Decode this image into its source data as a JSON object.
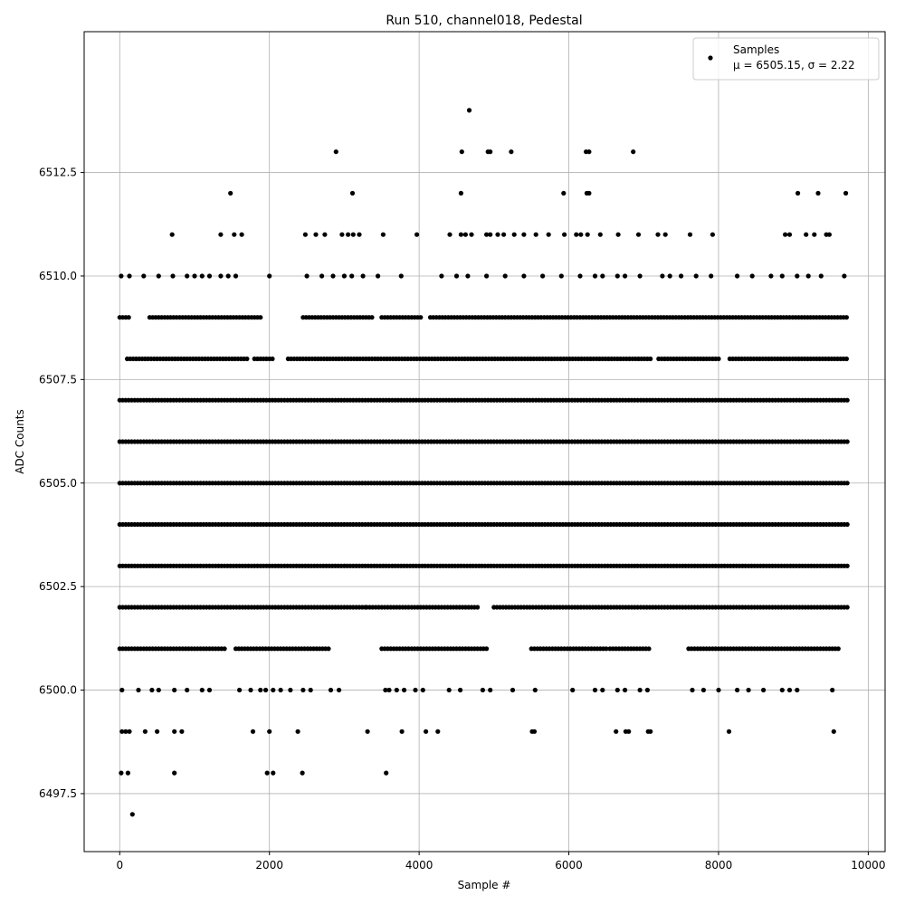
{
  "chart_data": {
    "type": "scatter",
    "title": "Run 510, channel018, Pedestal",
    "xlabel": "Sample #",
    "ylabel": "ADC Counts",
    "xlim": [
      -475,
      10225
    ],
    "ylim": [
      6496.1,
      6515.9
    ],
    "grid": true,
    "legend_position": "top-right",
    "marker_color": "#000000",
    "x_ticks": [
      0,
      2000,
      4000,
      6000,
      8000,
      10000
    ],
    "x_tick_labels": [
      "0",
      "2000",
      "4000",
      "6000",
      "8000",
      "10000"
    ],
    "y_ticks": [
      6497.5,
      6500.0,
      6502.5,
      6505.0,
      6507.5,
      6510.0,
      6512.5
    ],
    "y_tick_labels": [
      "6497.5",
      "6500.0",
      "6502.5",
      "6505.0",
      "6507.5",
      "6510.0",
      "6512.5"
    ],
    "series": [
      {
        "name": "Samples",
        "stats_label": "μ = 6505.15, σ = 2.22",
        "level_ranges": [
          {
            "y": 6509,
            "x_ranges": [
              [
                0,
                120
              ],
              [
                400,
                1900
              ],
              [
                2450,
                3400
              ],
              [
                3500,
                4050
              ],
              [
                4150,
                9720
              ]
            ]
          },
          {
            "y": 6508,
            "x_ranges": [
              [
                100,
                1700
              ],
              [
                1800,
                2050
              ],
              [
                2250,
                7100
              ],
              [
                7200,
                8000
              ],
              [
                8150,
                9720
              ]
            ]
          },
          {
            "y": 6507,
            "x_ranges": [
              [
                0,
                9720
              ]
            ]
          },
          {
            "y": 6506,
            "x_ranges": [
              [
                0,
                9720
              ]
            ]
          },
          {
            "y": 6505,
            "x_ranges": [
              [
                0,
                9720
              ]
            ]
          },
          {
            "y": 6504,
            "x_ranges": [
              [
                0,
                9720
              ]
            ]
          },
          {
            "y": 6503,
            "x_ranges": [
              [
                0,
                9720
              ]
            ]
          },
          {
            "y": 6502,
            "x_ranges": [
              [
                0,
                3300
              ],
              [
                3300,
                4800
              ],
              [
                5000,
                9720
              ]
            ]
          },
          {
            "y": 6501,
            "x_ranges": [
              [
                0,
                1400
              ],
              [
                1550,
                2800
              ],
              [
                3500,
                4900
              ],
              [
                5500,
                6500
              ],
              [
                6550,
                7100
              ],
              [
                7600,
                9600
              ]
            ]
          }
        ],
        "points": [
          [
            30,
            6500
          ],
          [
            250,
            6500
          ],
          [
            430,
            6500
          ],
          [
            520,
            6500
          ],
          [
            730,
            6500
          ],
          [
            900,
            6500
          ],
          [
            1100,
            6500
          ],
          [
            1200,
            6500
          ],
          [
            1600,
            6500
          ],
          [
            1750,
            6500
          ],
          [
            1880,
            6500
          ],
          [
            1950,
            6500
          ],
          [
            2050,
            6500
          ],
          [
            2150,
            6500
          ],
          [
            2280,
            6500
          ],
          [
            2450,
            6500
          ],
          [
            2550,
            6500
          ],
          [
            2820,
            6500
          ],
          [
            2930,
            6500
          ],
          [
            3550,
            6500
          ],
          [
            3600,
            6500
          ],
          [
            3700,
            6500
          ],
          [
            3800,
            6500
          ],
          [
            3950,
            6500
          ],
          [
            4050,
            6500
          ],
          [
            4400,
            6500
          ],
          [
            4550,
            6500
          ],
          [
            4850,
            6500
          ],
          [
            4950,
            6500
          ],
          [
            5250,
            6500
          ],
          [
            5550,
            6500
          ],
          [
            6050,
            6500
          ],
          [
            6350,
            6500
          ],
          [
            6450,
            6500
          ],
          [
            6650,
            6500
          ],
          [
            6750,
            6500
          ],
          [
            6950,
            6500
          ],
          [
            7050,
            6500
          ],
          [
            7650,
            6500
          ],
          [
            7800,
            6500
          ],
          [
            8000,
            6500
          ],
          [
            8250,
            6500
          ],
          [
            8400,
            6500
          ],
          [
            8600,
            6500
          ],
          [
            8850,
            6500
          ],
          [
            8950,
            6500
          ],
          [
            9050,
            6500
          ],
          [
            9520,
            6500
          ],
          [
            30,
            6499
          ],
          [
            80,
            6499
          ],
          [
            130,
            6499
          ],
          [
            340,
            6499
          ],
          [
            500,
            6499
          ],
          [
            730,
            6499
          ],
          [
            830,
            6499
          ],
          [
            1780,
            6499
          ],
          [
            2000,
            6499
          ],
          [
            2380,
            6499
          ],
          [
            3310,
            6499
          ],
          [
            3770,
            6499
          ],
          [
            4090,
            6499
          ],
          [
            4250,
            6499
          ],
          [
            5510,
            6499
          ],
          [
            5540,
            6499
          ],
          [
            6630,
            6499
          ],
          [
            6760,
            6499
          ],
          [
            6800,
            6499
          ],
          [
            7060,
            6499
          ],
          [
            7090,
            6499
          ],
          [
            8140,
            6499
          ],
          [
            9540,
            6499
          ],
          [
            20,
            6498
          ],
          [
            110,
            6498
          ],
          [
            730,
            6498
          ],
          [
            1970,
            6498
          ],
          [
            2050,
            6498
          ],
          [
            2440,
            6498
          ],
          [
            3560,
            6498
          ],
          [
            170,
            6497
          ],
          [
            20,
            6510
          ],
          [
            130,
            6510
          ],
          [
            320,
            6510
          ],
          [
            520,
            6510
          ],
          [
            710,
            6510
          ],
          [
            900,
            6510
          ],
          [
            1000,
            6510
          ],
          [
            1100,
            6510
          ],
          [
            1200,
            6510
          ],
          [
            1350,
            6510
          ],
          [
            1450,
            6510
          ],
          [
            1550,
            6510
          ],
          [
            2000,
            6510
          ],
          [
            2500,
            6510
          ],
          [
            2700,
            6510
          ],
          [
            2850,
            6510
          ],
          [
            3000,
            6510
          ],
          [
            3100,
            6510
          ],
          [
            3250,
            6510
          ],
          [
            3450,
            6510
          ],
          [
            3760,
            6510
          ],
          [
            4300,
            6510
          ],
          [
            4500,
            6510
          ],
          [
            4650,
            6510
          ],
          [
            4900,
            6510
          ],
          [
            5150,
            6510
          ],
          [
            5400,
            6510
          ],
          [
            5650,
            6510
          ],
          [
            5900,
            6510
          ],
          [
            6150,
            6510
          ],
          [
            6350,
            6510
          ],
          [
            6450,
            6510
          ],
          [
            6650,
            6510
          ],
          [
            6750,
            6510
          ],
          [
            6950,
            6510
          ],
          [
            7250,
            6510
          ],
          [
            7350,
            6510
          ],
          [
            7500,
            6510
          ],
          [
            7700,
            6510
          ],
          [
            7900,
            6510
          ],
          [
            8250,
            6510
          ],
          [
            8450,
            6510
          ],
          [
            8700,
            6510
          ],
          [
            8850,
            6510
          ],
          [
            9050,
            6510
          ],
          [
            9200,
            6510
          ],
          [
            9370,
            6510
          ],
          [
            9680,
            6510
          ],
          [
            700,
            6511
          ],
          [
            1350,
            6511
          ],
          [
            1530,
            6511
          ],
          [
            1630,
            6511
          ],
          [
            2480,
            6511
          ],
          [
            2620,
            6511
          ],
          [
            2740,
            6511
          ],
          [
            2970,
            6511
          ],
          [
            3050,
            6511
          ],
          [
            3120,
            6511
          ],
          [
            3200,
            6511
          ],
          [
            3520,
            6511
          ],
          [
            3970,
            6511
          ],
          [
            4410,
            6511
          ],
          [
            4560,
            6511
          ],
          [
            4620,
            6511
          ],
          [
            4700,
            6511
          ],
          [
            4900,
            6511
          ],
          [
            4950,
            6511
          ],
          [
            5050,
            6511
          ],
          [
            5130,
            6511
          ],
          [
            5270,
            6511
          ],
          [
            5400,
            6511
          ],
          [
            5560,
            6511
          ],
          [
            5730,
            6511
          ],
          [
            5940,
            6511
          ],
          [
            6100,
            6511
          ],
          [
            6160,
            6511
          ],
          [
            6250,
            6511
          ],
          [
            6420,
            6511
          ],
          [
            6660,
            6511
          ],
          [
            6930,
            6511
          ],
          [
            7190,
            6511
          ],
          [
            7290,
            6511
          ],
          [
            7620,
            6511
          ],
          [
            7920,
            6511
          ],
          [
            8890,
            6511
          ],
          [
            8950,
            6511
          ],
          [
            9170,
            6511
          ],
          [
            9280,
            6511
          ],
          [
            9440,
            6511
          ],
          [
            9480,
            6511
          ],
          [
            1480,
            6512
          ],
          [
            3110,
            6512
          ],
          [
            4560,
            6512
          ],
          [
            5930,
            6512
          ],
          [
            6240,
            6512
          ],
          [
            6270,
            6512
          ],
          [
            9060,
            6512
          ],
          [
            9330,
            6512
          ],
          [
            9700,
            6512
          ],
          [
            2890,
            6513
          ],
          [
            4570,
            6513
          ],
          [
            4920,
            6513
          ],
          [
            4950,
            6513
          ],
          [
            5230,
            6513
          ],
          [
            6230,
            6513
          ],
          [
            6270,
            6513
          ],
          [
            6860,
            6513
          ],
          [
            4670,
            6514
          ]
        ]
      }
    ]
  }
}
